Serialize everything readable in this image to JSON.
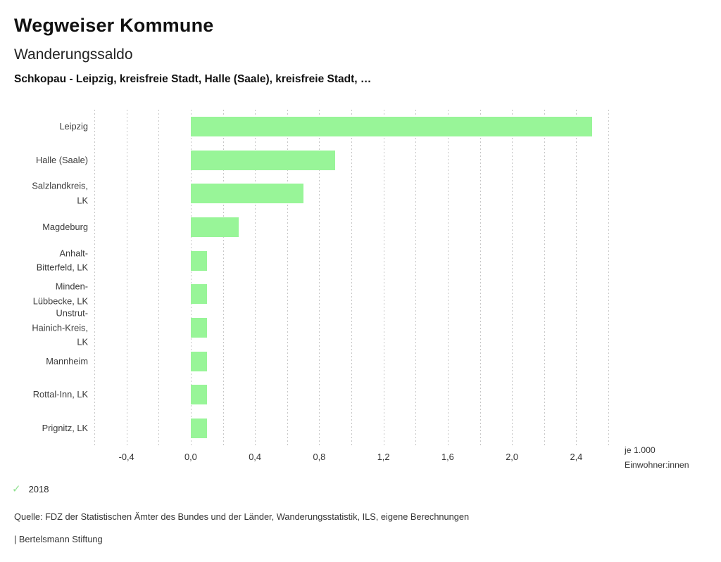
{
  "header": {
    "app_title": "Wegweiser Kommune",
    "chart_title": "Wanderungssaldo",
    "chart_subtitle": "Schkopau - Leipzig, kreisfreie Stadt, Halle (Saale), kreisfreie Stadt, …"
  },
  "chart_data": {
    "type": "bar",
    "orientation": "horizontal",
    "title": "Wanderungssaldo",
    "categories": [
      "Leipzig",
      "Halle (Saale)",
      "Salzlandkreis, LK",
      "Magdeburg",
      "Anhalt-Bitterfeld, LK",
      "Minden-Lübbecke, LK",
      "Unstrut-Hainich-Kreis, LK",
      "Mannheim",
      "Rottal-Inn, LK",
      "Prignitz, LK"
    ],
    "category_label_lines": [
      [
        "Leipzig"
      ],
      [
        "Halle (Saale)"
      ],
      [
        "Salzlandkreis,",
        "LK"
      ],
      [
        "Magdeburg"
      ],
      [
        "Anhalt-",
        "Bitterfeld, LK"
      ],
      [
        "Minden-",
        "Lübbecke, LK"
      ],
      [
        "Unstrut-",
        "Hainich-Kreis,",
        "LK"
      ],
      [
        "Mannheim"
      ],
      [
        "Rottal-Inn, LK"
      ],
      [
        "Prignitz, LK"
      ]
    ],
    "series": [
      {
        "name": "2018",
        "values": [
          2.5,
          0.9,
          0.7,
          0.3,
          0.1,
          0.1,
          0.1,
          0.1,
          0.1,
          0.1
        ]
      }
    ],
    "xlim": [
      -0.6,
      2.6
    ],
    "grid_step": 0.2,
    "grid": true,
    "x_ticks": [
      {
        "value": -0.4,
        "label": "-0,4"
      },
      {
        "value": 0.0,
        "label": "0,0"
      },
      {
        "value": 0.4,
        "label": "0,4"
      },
      {
        "value": 0.8,
        "label": "0,8"
      },
      {
        "value": 1.2,
        "label": "1,2"
      },
      {
        "value": 1.6,
        "label": "1,6"
      },
      {
        "value": 2.0,
        "label": "2,0"
      },
      {
        "value": 2.4,
        "label": "2,4"
      }
    ],
    "unit_label": "je 1.000\nEinwohner:innen",
    "legend_position": "bottom-left"
  },
  "legend": {
    "check_icon": "✓",
    "year_label": "2018"
  },
  "footer": {
    "source": "Quelle: FDZ der Statistischen Ämter des Bundes und der Länder, Wanderungsstatistik, ILS, eigene Berechnungen",
    "brand": "| Bertelsmann Stiftung"
  },
  "colors": {
    "bar_fill": "#98f598",
    "grid_line": "#c6c6c6",
    "check_green": "#8fe08f",
    "background": "#ffffff"
  }
}
